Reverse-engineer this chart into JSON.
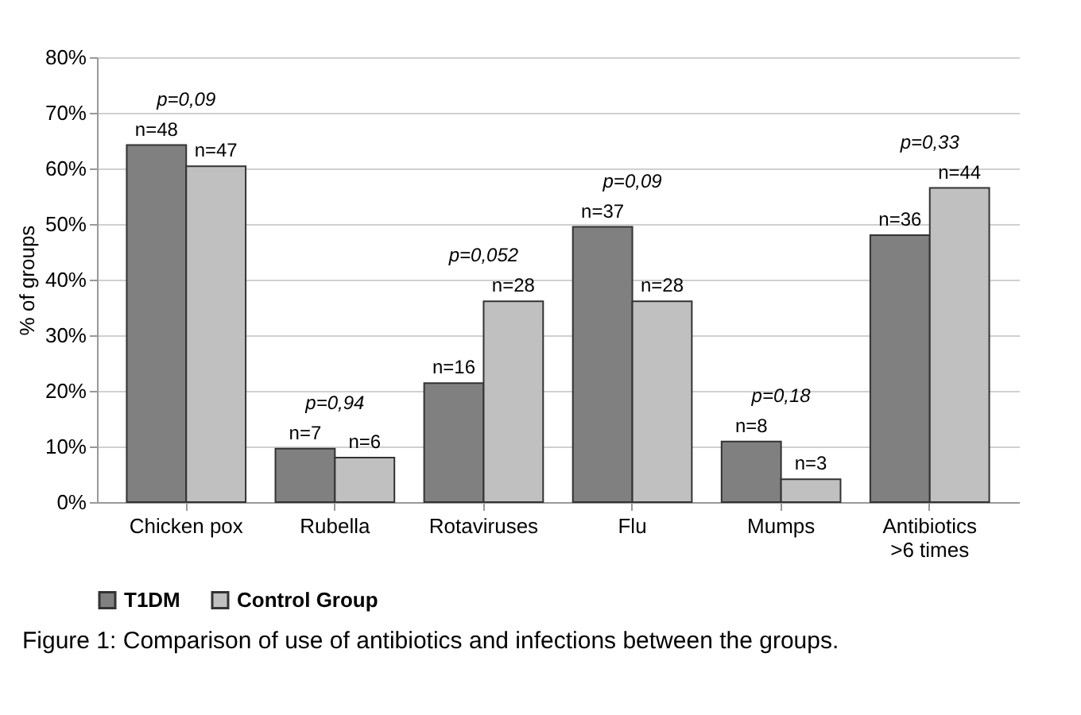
{
  "chart_data": {
    "type": "bar",
    "ylabel": "% of groups",
    "categories": [
      "Chicken pox",
      "Rubella",
      "Rotaviruses",
      "Flu",
      "Mumps",
      "Antibiotics >6 times"
    ],
    "series": [
      {
        "name": "T1DM",
        "color": "#808080",
        "values": [
          64.2,
          9.6,
          21.4,
          49.5,
          10.9,
          48.0
        ]
      },
      {
        "name": "Control Group",
        "color": "#c0c0c0",
        "values": [
          60.4,
          8.0,
          36.1,
          36.1,
          4.1,
          56.5
        ]
      }
    ],
    "ylim": [
      0,
      80
    ],
    "yticks": [
      {
        "value": 0,
        "label": "0%"
      },
      {
        "value": 10,
        "label": "10%"
      },
      {
        "value": 20,
        "label": "20%"
      },
      {
        "value": 30,
        "label": "30%"
      },
      {
        "value": 40,
        "label": "40%"
      },
      {
        "value": 50,
        "label": "50%"
      },
      {
        "value": 60,
        "label": "60%"
      },
      {
        "value": 70,
        "label": "70%"
      },
      {
        "value": 80,
        "label": "80%"
      }
    ],
    "grid": "y",
    "legend": "bottom",
    "annotations": [
      {
        "text": "n=48",
        "x": "Chicken pox",
        "y": 64.2
      },
      {
        "text": "n=47",
        "x": "Chicken pox",
        "y": 60.4
      },
      {
        "text": "n=7",
        "x": "Rubella",
        "y": 9.6
      },
      {
        "text": "n=6",
        "x": "Rubella",
        "y": 8.0
      },
      {
        "text": "n=16",
        "x": "Rotaviruses",
        "y": 21.4
      },
      {
        "text": "n=28",
        "x": "Rotaviruses",
        "y": 36.1
      },
      {
        "text": "n=37",
        "x": "Flu",
        "y": 49.5
      },
      {
        "text": "n=28",
        "x": "Flu",
        "y": 36.1
      },
      {
        "text": "n=8",
        "x": "Mumps",
        "y": 10.9
      },
      {
        "text": "n=3",
        "x": "Mumps",
        "y": 4.1
      },
      {
        "text": "n=36",
        "x": "Antibiotics >6 times",
        "y": 48.0
      },
      {
        "text": "n=44",
        "x": "Antibiotics >6 times",
        "y": 56.5
      },
      "p=0,09",
      "p=0,94",
      "p=0,052",
      "p=0,09",
      "p=0,18",
      "p=0,33",
      "Figure 1: Comparison of use of antibiotics and infections between the groups."
    ]
  }
}
